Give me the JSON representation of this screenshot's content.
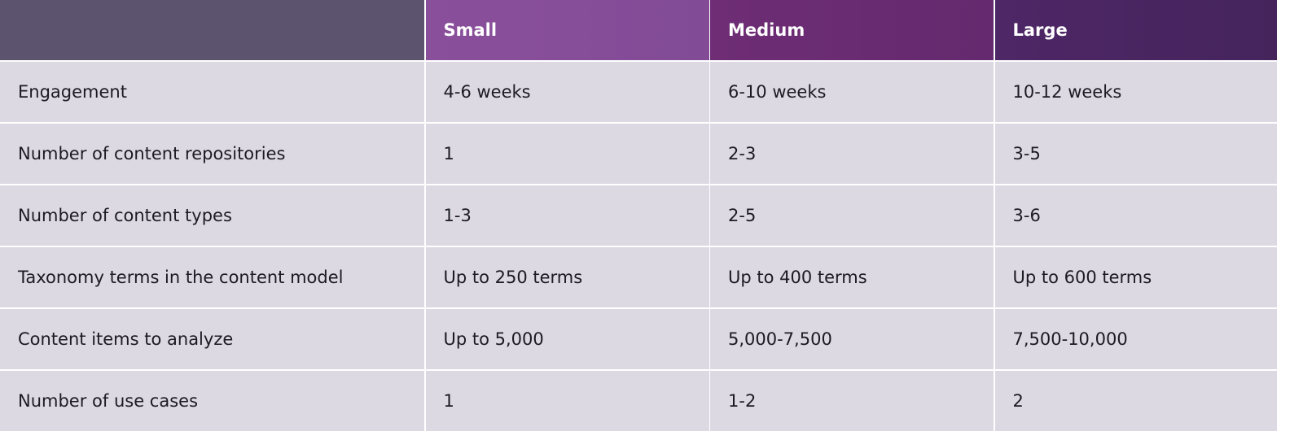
{
  "table": {
    "header": [
      "Small",
      "Medium",
      "Large"
    ],
    "rows": [
      [
        "Engagement",
        "4-6 weeks",
        "6-10 weeks",
        "10-12 weeks"
      ],
      [
        "Number of content repositories",
        "1",
        "2-3",
        "3-5"
      ],
      [
        "Number of content types",
        "1-3",
        "2-5",
        "3-6"
      ],
      [
        "Taxonomy terms in the content model",
        "Up to 250 terms",
        "Up to 400 terms",
        "Up to 600 terms"
      ],
      [
        "Content items to analyze",
        "Up to 5,000",
        "5,000-7,500",
        "7,500-10,000"
      ],
      [
        "Number of use cases",
        "1",
        "1-2",
        "2"
      ]
    ]
  }
}
